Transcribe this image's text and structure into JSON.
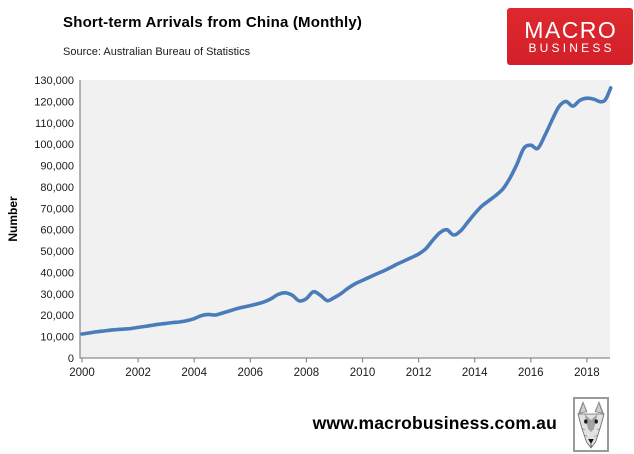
{
  "header": {
    "title": "Short-term Arrivals from China (Monthly)",
    "source": "Source: Australian Bureau of Statistics"
  },
  "logo": {
    "line1": "MACRO",
    "line2": "BUSINESS",
    "bg_color": "#d92528",
    "text_color": "#ffffff"
  },
  "footer": {
    "website": "www.macrobusiness.com.au"
  },
  "chart_data": {
    "type": "line",
    "title": "Short-term Arrivals from China (Monthly)",
    "subtitle": "Source: Australian Bureau of Statistics",
    "xlabel": "",
    "ylabel": "Number",
    "ylim": [
      0,
      130000
    ],
    "ytick_step": 10000,
    "ytick_labels": [
      "0",
      "10,000",
      "20,000",
      "30,000",
      "40,000",
      "50,000",
      "60,000",
      "70,000",
      "80,000",
      "90,000",
      "100,000",
      "110,000",
      "120,000",
      "130,000"
    ],
    "xticks": [
      2000,
      2002,
      2004,
      2006,
      2008,
      2010,
      2012,
      2014,
      2016,
      2018
    ],
    "xtick_labels": [
      "2000",
      "2002",
      "2004",
      "2006",
      "2008",
      "2010",
      "2012",
      "2014",
      "2016",
      "2018"
    ],
    "grid": false,
    "legend": "none",
    "line_color": "#4a7cba",
    "plot_bg": "#f1f1f1",
    "axis_color": "#8c8c8c",
    "text_color": "#1a1a1a",
    "series": [
      {
        "x": [
          2000.0,
          2000.25,
          2000.5,
          2000.75,
          2001.0,
          2001.25,
          2001.5,
          2001.75,
          2002.0,
          2002.25,
          2002.5,
          2002.75,
          2003.0,
          2003.25,
          2003.5,
          2003.75,
          2004.0,
          2004.25,
          2004.5,
          2004.75,
          2005.0,
          2005.25,
          2005.5,
          2005.75,
          2006.0,
          2006.25,
          2006.5,
          2006.75,
          2007.0,
          2007.25,
          2007.5,
          2007.75,
          2008.0,
          2008.25,
          2008.5,
          2008.75,
          2009.0,
          2009.25,
          2009.5,
          2009.75,
          2010.0,
          2010.25,
          2010.5,
          2010.75,
          2011.0,
          2011.25,
          2011.5,
          2011.75,
          2012.0,
          2012.25,
          2012.5,
          2012.75,
          2013.0,
          2013.25,
          2013.5,
          2013.75,
          2014.0,
          2014.25,
          2014.5,
          2014.75,
          2015.0,
          2015.25,
          2015.5,
          2015.75,
          2016.0,
          2016.25,
          2016.5,
          2016.75,
          2017.0,
          2017.25,
          2017.5,
          2017.75,
          2018.0,
          2018.25,
          2018.5,
          2018.67,
          2018.85
        ],
        "y": [
          11200,
          11700,
          12200,
          12600,
          13000,
          13300,
          13500,
          13800,
          14300,
          14800,
          15300,
          15800,
          16200,
          16600,
          16900,
          17500,
          18400,
          19800,
          20400,
          20100,
          21000,
          22000,
          23000,
          23800,
          24500,
          25300,
          26300,
          27800,
          29800,
          30500,
          29300,
          26700,
          27800,
          31000,
          29300,
          26800,
          28300,
          30300,
          32800,
          34800,
          36300,
          37800,
          39300,
          40700,
          42300,
          44000,
          45500,
          47000,
          48600,
          51000,
          55000,
          58500,
          60000,
          57500,
          59500,
          63500,
          67500,
          71000,
          73500,
          76000,
          79000,
          84000,
          90500,
          98000,
          99500,
          98000,
          104000,
          111000,
          117500,
          120000,
          117800,
          120500,
          121500,
          121000,
          119800,
          121000,
          126300
        ]
      }
    ]
  }
}
